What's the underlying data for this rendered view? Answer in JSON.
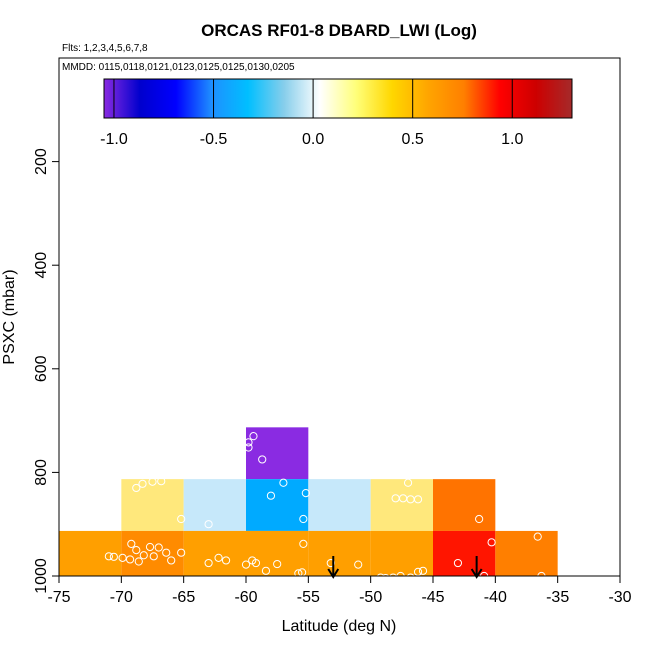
{
  "chart_data": {
    "type": "heatmap",
    "title": "ORCAS RF01-8 DBARD_LWI (Log)",
    "subtitle_flights": "Flts: 1,2,3,4,5,6,7,8",
    "subtitle_dates": "MMDD: 0115,0118,0121,0123,0125,0125,0130,0205",
    "xlabel": "Latitude (deg N)",
    "ylabel": "PSXC (mbar)",
    "xlim": [
      -75,
      -30
    ],
    "ylim": [
      1000,
      0
    ],
    "x_ticks": [
      -75,
      -70,
      -65,
      -60,
      -55,
      -50,
      -45,
      -40,
      -35,
      -30
    ],
    "x_tick_labels": [
      "-75",
      "-70",
      "-65",
      "-60",
      "-55",
      "-50",
      "-45",
      "-40",
      "-35",
      "-30"
    ],
    "y_ticks": [
      200,
      400,
      600,
      800,
      1000
    ],
    "y_tick_labels": [
      "200",
      "400",
      "600",
      "800",
      "1000"
    ],
    "colorbar": {
      "range": [
        -1.05,
        1.3
      ],
      "ticks": [
        -1.0,
        -0.5,
        0.0,
        0.5,
        1.0
      ],
      "tick_labels": [
        "-1.0",
        "-0.5",
        "0.0",
        "0.5",
        "1.0"
      ],
      "stops": [
        "#8a2be2",
        "#0000cd",
        "#0000ff",
        "#1e90ff",
        "#00bfff",
        "#87ceeb",
        "#ffffff",
        "#ffff7a",
        "#ffd700",
        "#ffa500",
        "#ff7f00",
        "#ff0000",
        "#cd0000",
        "#a52a2a"
      ]
    },
    "cells": [
      {
        "lat0": -60,
        "lat1": -55,
        "p0": 713,
        "p1": 813,
        "color": "#8a2be2"
      },
      {
        "lat0": -70,
        "lat1": -65,
        "p0": 813,
        "p1": 913,
        "color": "#ffe87c"
      },
      {
        "lat0": -65,
        "lat1": -60,
        "p0": 813,
        "p1": 913,
        "color": "#c6e8fa"
      },
      {
        "lat0": -60,
        "lat1": -55,
        "p0": 813,
        "p1": 913,
        "color": "#00aaff"
      },
      {
        "lat0": -55,
        "lat1": -50,
        "p0": 813,
        "p1": 913,
        "color": "#c6e8fa"
      },
      {
        "lat0": -50,
        "lat1": -45,
        "p0": 813,
        "p1": 913,
        "color": "#ffe87c"
      },
      {
        "lat0": -45,
        "lat1": -40,
        "p0": 813,
        "p1": 913,
        "color": "#ff7300"
      },
      {
        "lat0": -75,
        "lat1": -70,
        "p0": 913,
        "p1": 1013,
        "color": "#ff9f00"
      },
      {
        "lat0": -70,
        "lat1": -65,
        "p0": 913,
        "p1": 1013,
        "color": "#ff8b00"
      },
      {
        "lat0": -65,
        "lat1": -60,
        "p0": 913,
        "p1": 1013,
        "color": "#ff9f00"
      },
      {
        "lat0": -60,
        "lat1": -55,
        "p0": 913,
        "p1": 1013,
        "color": "#ff9f00"
      },
      {
        "lat0": -55,
        "lat1": -50,
        "p0": 913,
        "p1": 1013,
        "color": "#ff9f00"
      },
      {
        "lat0": -50,
        "lat1": -45,
        "p0": 913,
        "p1": 1013,
        "color": "#ff9f00"
      },
      {
        "lat0": -45,
        "lat1": -40,
        "p0": 913,
        "p1": 1013,
        "color": "#ff1500"
      },
      {
        "lat0": -40,
        "lat1": -35,
        "p0": 913,
        "p1": 1013,
        "color": "#ff7f00"
      }
    ],
    "points": [
      [
        -71.0,
        962
      ],
      [
        -70.6,
        963
      ],
      [
        -69.9,
        965
      ],
      [
        -69.3,
        968
      ],
      [
        -68.8,
        950
      ],
      [
        -68.2,
        960
      ],
      [
        -67.7,
        944
      ],
      [
        -67.4,
        962
      ],
      [
        -67.0,
        945
      ],
      [
        -66.4,
        955
      ],
      [
        -66.0,
        970
      ],
      [
        -65.2,
        955
      ],
      [
        -63.0,
        975
      ],
      [
        -62.2,
        965
      ],
      [
        -61.6,
        970
      ],
      [
        -60.0,
        978
      ],
      [
        -59.5,
        970
      ],
      [
        -59.2,
        975
      ],
      [
        -58.4,
        990
      ],
      [
        -57.5,
        977
      ],
      [
        -55.8,
        995
      ],
      [
        -55.5,
        993
      ],
      [
        -55.4,
        938
      ],
      [
        -53.2,
        975
      ],
      [
        -51.0,
        978
      ],
      [
        -49.2,
        1003
      ],
      [
        -48.8,
        1004
      ],
      [
        -48.2,
        1003
      ],
      [
        -47.6,
        1000
      ],
      [
        -46.8,
        1003
      ],
      [
        -46.2,
        992
      ],
      [
        -45.8,
        990
      ],
      [
        -43.0,
        975
      ],
      [
        -40.9,
        1000
      ],
      [
        -40.3,
        935
      ],
      [
        -36.6,
        924
      ],
      [
        -36.3,
        1000
      ],
      [
        -69.2,
        938
      ],
      [
        -68.6,
        972
      ],
      [
        -68.8,
        830
      ],
      [
        -68.3,
        822
      ],
      [
        -67.5,
        818
      ],
      [
        -66.8,
        817
      ],
      [
        -65.2,
        890
      ],
      [
        -63.0,
        900
      ],
      [
        -59.8,
        742
      ],
      [
        -59.4,
        730
      ],
      [
        -59.8,
        752
      ],
      [
        -58.7,
        775
      ],
      [
        -58.0,
        845
      ],
      [
        -57.0,
        820
      ],
      [
        -55.4,
        890
      ],
      [
        -55.2,
        840
      ],
      [
        -48.0,
        850
      ],
      [
        -47.4,
        850
      ],
      [
        -46.8,
        852
      ],
      [
        -46.2,
        852
      ],
      [
        -47.0,
        820
      ],
      [
        -41.3,
        890
      ]
    ],
    "arrows": [
      -53.0,
      -41.5
    ]
  }
}
